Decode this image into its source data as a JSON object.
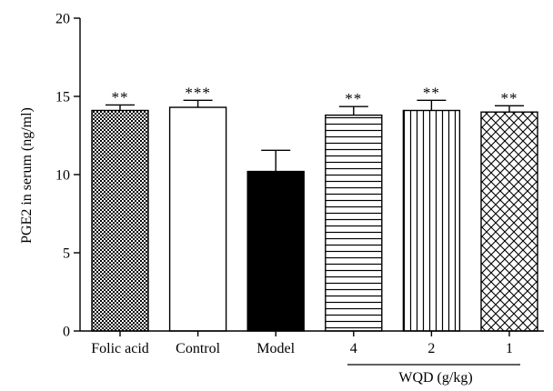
{
  "chart_data": {
    "type": "bar",
    "title": "",
    "xlabel": "",
    "ylabel": "PGE2 in serum (ng/ml)",
    "ylim": [
      0,
      20
    ],
    "yticks": [
      "0",
      "5",
      "10",
      "15",
      "20"
    ],
    "categories": [
      "Folic acid",
      "Control",
      "Model",
      "4",
      "2",
      "1"
    ],
    "values": [
      14.1,
      14.3,
      10.2,
      13.8,
      14.1,
      14.0
    ],
    "errors": [
      0.35,
      0.45,
      1.35,
      0.55,
      0.65,
      0.4
    ],
    "significance": [
      "**",
      "***",
      "",
      "**",
      "**",
      "**"
    ],
    "fills": [
      "checker",
      "white",
      "black",
      "hlines",
      "vlines",
      "crosshatch"
    ],
    "group_label": "WQD (g/kg)",
    "grid": false,
    "legend": "none"
  }
}
